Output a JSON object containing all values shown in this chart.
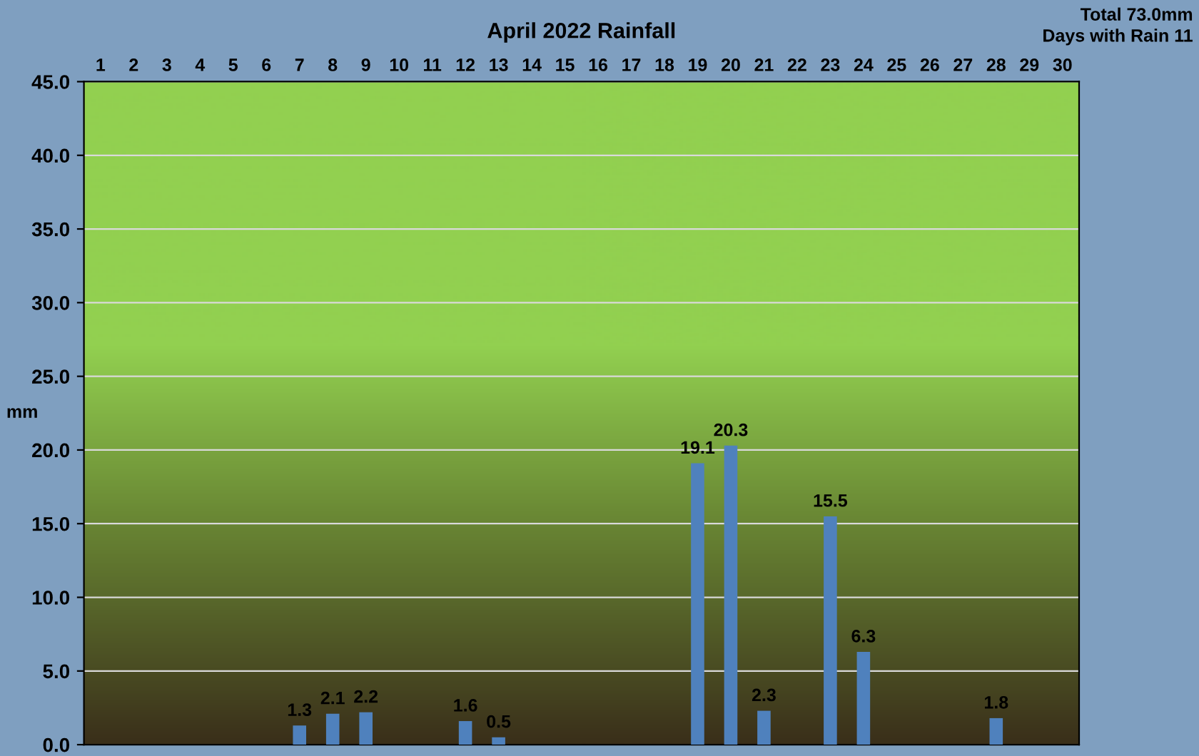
{
  "chart_data": {
    "type": "bar",
    "title": "April 2022 Rainfall",
    "ylabel": "mm",
    "annotations": [
      "Total 73.0mm",
      "Days with Rain 11"
    ],
    "categories": [
      "1",
      "2",
      "3",
      "4",
      "5",
      "6",
      "7",
      "8",
      "9",
      "10",
      "11",
      "12",
      "13",
      "14",
      "15",
      "16",
      "17",
      "18",
      "19",
      "20",
      "21",
      "22",
      "23",
      "24",
      "25",
      "26",
      "27",
      "28",
      "29",
      "30"
    ],
    "values": [
      0,
      0,
      0,
      0,
      0,
      0,
      1.3,
      2.1,
      2.2,
      0,
      0,
      1.6,
      0.5,
      0,
      0,
      0,
      0,
      0,
      19.1,
      20.3,
      2.3,
      0,
      15.5,
      6.3,
      0,
      0,
      0,
      1.8,
      0,
      0
    ],
    "value_labels": [
      null,
      null,
      null,
      null,
      null,
      null,
      "1.3",
      "2.1",
      "2.2",
      null,
      null,
      "1.6",
      "0.5",
      null,
      null,
      null,
      null,
      null,
      "19.1",
      "20.3",
      "2.3",
      null,
      "15.5",
      "6.3",
      null,
      null,
      null,
      "1.8",
      null,
      null
    ],
    "color": "#4f81bd",
    "ylim": [
      0,
      45
    ],
    "yticks": [
      {
        "value": 0,
        "label": "0.0"
      },
      {
        "value": 5,
        "label": "5.0"
      },
      {
        "value": 10,
        "label": "10.0"
      },
      {
        "value": 15,
        "label": "15.0"
      },
      {
        "value": 20,
        "label": "20.0"
      },
      {
        "value": 25,
        "label": "25.0"
      },
      {
        "value": 30,
        "label": "30.0"
      },
      {
        "value": 35,
        "label": "35.0"
      },
      {
        "value": 40,
        "label": "40.0"
      },
      {
        "value": 45,
        "label": "45.0"
      }
    ],
    "grid": "y",
    "legend": false
  }
}
